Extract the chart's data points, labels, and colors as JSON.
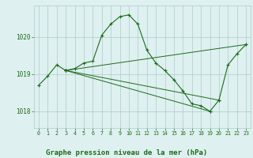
{
  "background_color": "#dff0f0",
  "grid_color": "#aacccc",
  "line_color": "#1a6b1a",
  "marker_color": "#1a6b1a",
  "title": "Graphe pression niveau de la mer (hPa)",
  "title_fontsize": 6.5,
  "ylim": [
    1017.55,
    1020.85
  ],
  "yticks": [
    1018,
    1019,
    1020
  ],
  "xticks": [
    0,
    1,
    2,
    3,
    4,
    5,
    6,
    7,
    8,
    9,
    10,
    11,
    12,
    13,
    14,
    15,
    16,
    17,
    18,
    19,
    20,
    21,
    22,
    23
  ],
  "series": [
    {
      "x": [
        0,
        1,
        2,
        3,
        4,
        5,
        6,
        7,
        8,
        9,
        10,
        11,
        12,
        13,
        14,
        15,
        16,
        17,
        18,
        19,
        20,
        21,
        22,
        23
      ],
      "y": [
        1018.7,
        1018.95,
        1019.25,
        1019.1,
        1019.15,
        1019.3,
        1019.35,
        1020.05,
        1020.35,
        1020.55,
        1020.6,
        1020.35,
        1019.65,
        1019.3,
        1019.1,
        1018.85,
        1018.55,
        1018.2,
        1018.15,
        1018.0,
        1018.3,
        1019.25,
        1019.55,
        1019.8
      ]
    },
    {
      "x": [
        3,
        23
      ],
      "y": [
        1019.1,
        1019.8
      ]
    },
    {
      "x": [
        3,
        19
      ],
      "y": [
        1019.1,
        1018.0
      ]
    },
    {
      "x": [
        3,
        20
      ],
      "y": [
        1019.1,
        1018.3
      ]
    }
  ]
}
